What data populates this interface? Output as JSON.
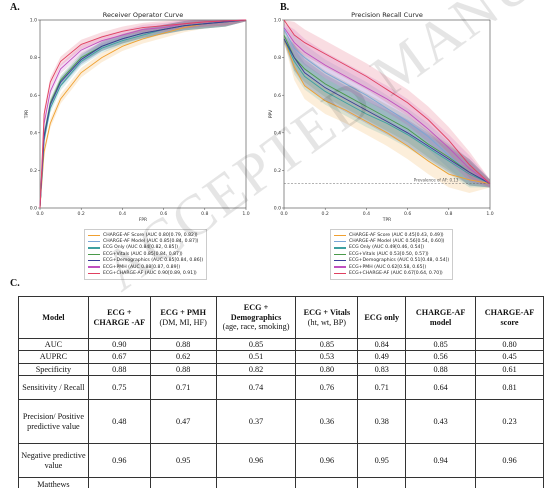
{
  "panels": {
    "a_label": "A.",
    "b_label": "B.",
    "c_label": "C."
  },
  "colors": {
    "charge_af_score": "#f0a030",
    "charge_af_model": "#7aa6d6",
    "ecg_only": "#3ea0a0",
    "ecg_vitals": "#4a9a4a",
    "ecg_demographics": "#3b3b9a",
    "ecg_pmh": "#c050c0",
    "ecg_charge_af": "#e04060"
  },
  "chart_data": [
    {
      "type": "line",
      "title": "Receiver Operator Curve",
      "xlabel": "FPR",
      "ylabel": "TPR",
      "xlim": [
        0,
        1
      ],
      "ylim": [
        0,
        1
      ],
      "x_ticks": [
        "0.0",
        "0.2",
        "0.4",
        "0.6",
        "0.8",
        "1.0"
      ],
      "y_ticks": [
        "0.0",
        "0.2",
        "0.4",
        "0.6",
        "0.8",
        "1.0"
      ],
      "legend_position": "bottom-right",
      "series": [
        {
          "name": "CHARGE-AF Score (AUC 0.80[0.79, 0.82])",
          "color": "#f0a030",
          "x": [
            0,
            0.02,
            0.05,
            0.1,
            0.2,
            0.3,
            0.4,
            0.5,
            0.6,
            0.7,
            0.8,
            0.9,
            1.0
          ],
          "y": [
            0,
            0.3,
            0.45,
            0.58,
            0.72,
            0.8,
            0.86,
            0.9,
            0.93,
            0.96,
            0.98,
            0.99,
            1.0
          ]
        },
        {
          "name": "CHARGE-AF Model (AUC 0.85[0.84, 0.87])",
          "color": "#7aa6d6",
          "x": [
            0,
            0.02,
            0.05,
            0.1,
            0.2,
            0.3,
            0.4,
            0.5,
            0.6,
            0.7,
            0.8,
            0.9,
            1.0
          ],
          "y": [
            0,
            0.38,
            0.55,
            0.67,
            0.79,
            0.86,
            0.9,
            0.93,
            0.95,
            0.97,
            0.98,
            0.99,
            1.0
          ]
        },
        {
          "name": "ECG Only (AUC 0.84[0.82, 0.85])",
          "color": "#3ea0a0",
          "x": [
            0,
            0.02,
            0.05,
            0.1,
            0.2,
            0.3,
            0.4,
            0.5,
            0.6,
            0.7,
            0.8,
            0.9,
            1.0
          ],
          "y": [
            0,
            0.36,
            0.53,
            0.65,
            0.78,
            0.85,
            0.89,
            0.92,
            0.95,
            0.97,
            0.98,
            0.99,
            1.0
          ]
        },
        {
          "name": "ECG+Vitals (AUC 0.85[0.84, 0.87])",
          "color": "#4a9a4a",
          "x": [
            0,
            0.02,
            0.05,
            0.1,
            0.2,
            0.3,
            0.4,
            0.5,
            0.6,
            0.7,
            0.8,
            0.9,
            1.0
          ],
          "y": [
            0,
            0.39,
            0.56,
            0.68,
            0.8,
            0.86,
            0.9,
            0.93,
            0.95,
            0.97,
            0.98,
            0.99,
            1.0
          ]
        },
        {
          "name": "ECG+Demographics (AUC 0.85[0.84, 0.86])",
          "color": "#3b3b9a",
          "x": [
            0,
            0.02,
            0.05,
            0.1,
            0.2,
            0.3,
            0.4,
            0.5,
            0.6,
            0.7,
            0.8,
            0.9,
            1.0
          ],
          "y": [
            0,
            0.38,
            0.55,
            0.67,
            0.79,
            0.86,
            0.9,
            0.93,
            0.95,
            0.97,
            0.98,
            0.99,
            1.0
          ]
        },
        {
          "name": "ECG+PMH (AUC 0.88[0.87, 0.89])",
          "color": "#c050c0",
          "x": [
            0,
            0.02,
            0.05,
            0.1,
            0.2,
            0.3,
            0.4,
            0.5,
            0.6,
            0.7,
            0.8,
            0.9,
            1.0
          ],
          "y": [
            0,
            0.45,
            0.62,
            0.74,
            0.84,
            0.89,
            0.92,
            0.95,
            0.96,
            0.98,
            0.99,
            0.995,
            1.0
          ]
        },
        {
          "name": "ECG+CHARGE-AF (AUC 0.90[0.89, 0.91])",
          "color": "#e04060",
          "x": [
            0,
            0.02,
            0.05,
            0.1,
            0.2,
            0.3,
            0.4,
            0.5,
            0.6,
            0.7,
            0.8,
            0.9,
            1.0
          ],
          "y": [
            0,
            0.5,
            0.67,
            0.78,
            0.87,
            0.91,
            0.94,
            0.96,
            0.97,
            0.98,
            0.99,
            0.995,
            1.0
          ]
        }
      ]
    },
    {
      "type": "line",
      "title": "Precision Recall Curve",
      "xlabel": "TPR",
      "ylabel": "PPV",
      "xlim": [
        0,
        1
      ],
      "ylim": [
        0,
        1
      ],
      "x_ticks": [
        "0.0",
        "0.2",
        "0.4",
        "0.6",
        "0.8",
        "1.0"
      ],
      "y_ticks": [
        "0.0",
        "0.2",
        "0.4",
        "0.6",
        "0.8",
        "1.0"
      ],
      "reference_line": {
        "y": 0.13,
        "label": "Prevalence of AF: 0.13"
      },
      "legend_position": "bottom-right",
      "series": [
        {
          "name": "CHARGE-AF Score (AUC 0.45[0.43, 0.49])",
          "color": "#f0a030",
          "x": [
            0,
            0.05,
            0.1,
            0.2,
            0.3,
            0.4,
            0.5,
            0.6,
            0.7,
            0.8,
            0.9,
            1.0
          ],
          "y": [
            0.9,
            0.75,
            0.65,
            0.57,
            0.52,
            0.46,
            0.4,
            0.33,
            0.25,
            0.18,
            0.15,
            0.13
          ]
        },
        {
          "name": "CHARGE-AF Model (AUC 0.56[0.54, 0.60])",
          "color": "#7aa6d6",
          "x": [
            0,
            0.05,
            0.1,
            0.2,
            0.3,
            0.4,
            0.5,
            0.6,
            0.7,
            0.8,
            0.9,
            1.0
          ],
          "y": [
            0.95,
            0.85,
            0.8,
            0.72,
            0.66,
            0.6,
            0.53,
            0.46,
            0.38,
            0.28,
            0.19,
            0.13
          ]
        },
        {
          "name": "ECG Only (AUC 0.49[0.46, 0.54])",
          "color": "#3ea0a0",
          "x": [
            0,
            0.05,
            0.1,
            0.2,
            0.3,
            0.4,
            0.5,
            0.6,
            0.7,
            0.8,
            0.9,
            1.0
          ],
          "y": [
            0.9,
            0.78,
            0.7,
            0.62,
            0.56,
            0.5,
            0.45,
            0.39,
            0.32,
            0.25,
            0.18,
            0.13
          ]
        },
        {
          "name": "ECG+Vitals (AUC 0.53[0.50, 0.57])",
          "color": "#4a9a4a",
          "x": [
            0,
            0.05,
            0.1,
            0.2,
            0.3,
            0.4,
            0.5,
            0.6,
            0.7,
            0.8,
            0.9,
            1.0
          ],
          "y": [
            0.92,
            0.8,
            0.74,
            0.66,
            0.6,
            0.54,
            0.48,
            0.42,
            0.34,
            0.27,
            0.19,
            0.13
          ]
        },
        {
          "name": "ECG+Demographics (AUC 0.51[0.48, 0.54])",
          "color": "#3b3b9a",
          "x": [
            0,
            0.05,
            0.1,
            0.2,
            0.3,
            0.4,
            0.5,
            0.6,
            0.7,
            0.8,
            0.9,
            1.0
          ],
          "y": [
            0.9,
            0.8,
            0.72,
            0.64,
            0.58,
            0.52,
            0.46,
            0.4,
            0.33,
            0.26,
            0.19,
            0.13
          ]
        },
        {
          "name": "ECG+PMH (AUC 0.62[0.58, 0.65])",
          "color": "#c050c0",
          "x": [
            0,
            0.05,
            0.1,
            0.2,
            0.3,
            0.4,
            0.5,
            0.6,
            0.7,
            0.8,
            0.9,
            1.0
          ],
          "y": [
            0.96,
            0.88,
            0.83,
            0.76,
            0.7,
            0.64,
            0.58,
            0.51,
            0.42,
            0.32,
            0.21,
            0.13
          ]
        },
        {
          "name": "ECG+CHARGE-AF (AUC 0.67[0.64, 0.70])",
          "color": "#e04060",
          "x": [
            0,
            0.05,
            0.1,
            0.2,
            0.3,
            0.4,
            0.5,
            0.6,
            0.7,
            0.8,
            0.9,
            1.0
          ],
          "y": [
            1.0,
            0.92,
            0.88,
            0.82,
            0.76,
            0.7,
            0.63,
            0.56,
            0.47,
            0.36,
            0.23,
            0.13
          ]
        }
      ]
    }
  ],
  "table": {
    "headers": [
      {
        "main": "Model",
        "sub": ""
      },
      {
        "main": "ECG + CHARGE -AF",
        "sub": ""
      },
      {
        "main": "ECG + PMH",
        "sub": "(DM, MI, HF)"
      },
      {
        "main": "ECG + Demographics",
        "sub": "(age, race, smoking)"
      },
      {
        "main": "ECG + Vitals",
        "sub": "(ht, wt, BP)"
      },
      {
        "main": "ECG only",
        "sub": ""
      },
      {
        "main": "CHARGE-AF model",
        "sub": ""
      },
      {
        "main": "CHARGE-AF score",
        "sub": ""
      }
    ],
    "rows": [
      [
        "AUC",
        "0.90",
        "0.88",
        "0.85",
        "0.85",
        "0.84",
        "0.85",
        "0.80"
      ],
      [
        "AUPRC",
        "0.67",
        "0.62",
        "0.51",
        "0.53",
        "0.49",
        "0.56",
        "0.45"
      ],
      [
        "Specificity",
        "0.88",
        "0.88",
        "0.82",
        "0.80",
        "0.83",
        "0.88",
        "0.61"
      ],
      [
        "Sensitivity / Recall",
        "0.75",
        "0.71",
        "0.74",
        "0.76",
        "0.71",
        "0.64",
        "0.81"
      ],
      [
        "Precision/ Positive predictive value",
        "0.48",
        "0.47",
        "0.37",
        "0.36",
        "0.38",
        "0.43",
        "0.23"
      ],
      [
        "Negative predictive value",
        "0.96",
        "0.95",
        "0.96",
        "0.96",
        "0.95",
        "0.94",
        "0.96"
      ],
      [
        "Matthews",
        "",
        "",
        "",
        "",
        "",
        "",
        ""
      ]
    ]
  },
  "watermark": "ACCEPTED MANUSCRIPT"
}
